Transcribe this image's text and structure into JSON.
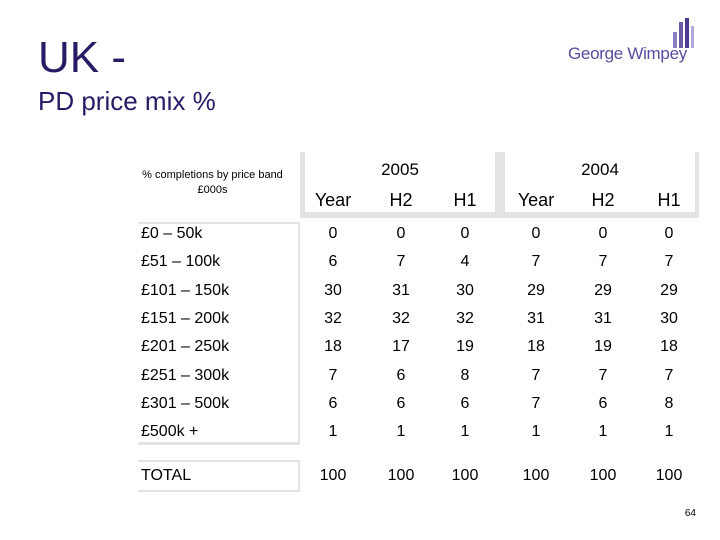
{
  "slide": {
    "title": "UK -",
    "subtitle": "PD price mix %",
    "note": "% completions by price band £000s",
    "page_number": "64"
  },
  "logo": {
    "text": "George Wimpey"
  },
  "table": {
    "years": [
      "2005",
      "2004"
    ],
    "columns": [
      "Year",
      "H2",
      "H1",
      "Year",
      "H2",
      "H1"
    ],
    "rows": [
      {
        "label": "£0 – 50k",
        "values": [
          "0",
          "0",
          "0",
          "0",
          "0",
          "0"
        ]
      },
      {
        "label": "£51 – 100k",
        "values": [
          "6",
          "7",
          "4",
          "7",
          "7",
          "7"
        ]
      },
      {
        "label": "£101 – 150k",
        "values": [
          "30",
          "31",
          "30",
          "29",
          "29",
          "29"
        ]
      },
      {
        "label": "£151 – 200k",
        "values": [
          "32",
          "32",
          "32",
          "31",
          "31",
          "30"
        ]
      },
      {
        "label": "£201 – 250k",
        "values": [
          "18",
          "17",
          "19",
          "18",
          "19",
          "18"
        ]
      },
      {
        "label": "£251 – 300k",
        "values": [
          "7",
          "6",
          "8",
          "7",
          "7",
          "7"
        ]
      },
      {
        "label": "£301 – 500k",
        "values": [
          "6",
          "6",
          "6",
          "7",
          "6",
          "8"
        ]
      },
      {
        "label": "£500k +",
        "values": [
          "1",
          "1",
          "1",
          "1",
          "1",
          "1"
        ]
      }
    ],
    "total": {
      "label": "TOTAL",
      "values": [
        "100",
        "100",
        "100",
        "100",
        "100",
        "100"
      ]
    }
  }
}
